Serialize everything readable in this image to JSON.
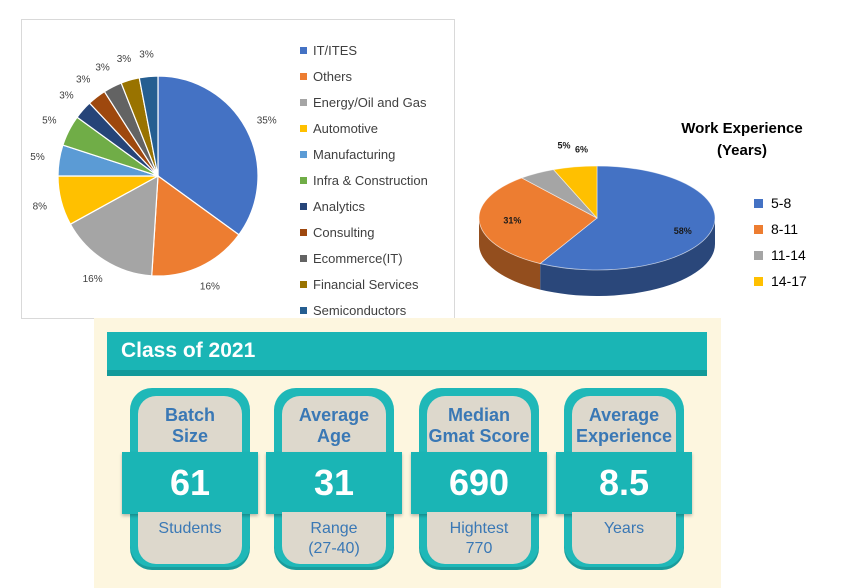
{
  "chart_data": [
    {
      "type": "pie",
      "title": "",
      "categories": [
        "IT/ITES",
        "Others",
        "Energy/Oil and Gas",
        "Automotive",
        "Manufacturing",
        "Infra & Construction",
        "Analytics",
        "Consulting",
        "Ecommerce(IT)",
        "Financial Services",
        "Semiconductors"
      ],
      "values": [
        35,
        16,
        16,
        8,
        5,
        5,
        3,
        3,
        3,
        3,
        3
      ],
      "labels": [
        "35%",
        "16%",
        "16%",
        "8%",
        "5%",
        "5%",
        "3%",
        "3%",
        "3%",
        "3%",
        "3%"
      ],
      "colors": [
        "#4472c4",
        "#ed7d31",
        "#a5a5a5",
        "#ffc000",
        "#5b9bd5",
        "#70ad47",
        "#264478",
        "#9e480e",
        "#636363",
        "#997300",
        "#255e91"
      ],
      "legend": "right"
    },
    {
      "type": "pie",
      "title": "Work Experience (Years)",
      "title_lines": [
        "Work Experience",
        "(Years)"
      ],
      "categories": [
        "5-8",
        "8-11",
        "11-14",
        "14-17"
      ],
      "values": [
        58,
        31,
        5,
        6
      ],
      "labels": [
        "58%",
        "31%",
        "5%",
        "6%"
      ],
      "colors": [
        "#4472c4",
        "#ed7d31",
        "#a5a5a5",
        "#ffc000"
      ],
      "style": "3d",
      "legend": "right"
    }
  ],
  "class_panel": {
    "title": "Class of 2021",
    "cards": [
      {
        "label_lines": [
          "Batch",
          "Size"
        ],
        "value": "61",
        "sub_lines": [
          "Students"
        ]
      },
      {
        "label_lines": [
          "Average",
          "Age"
        ],
        "value": "31",
        "sub_lines": [
          "Range",
          "(27-40)"
        ]
      },
      {
        "label_lines": [
          "Median",
          "Gmat Score"
        ],
        "value": "690",
        "sub_lines": [
          "Hightest",
          "770"
        ]
      },
      {
        "label_lines": [
          "Average",
          "Experience"
        ],
        "value": "8.5",
        "sub_lines": [
          "Years"
        ]
      }
    ]
  }
}
